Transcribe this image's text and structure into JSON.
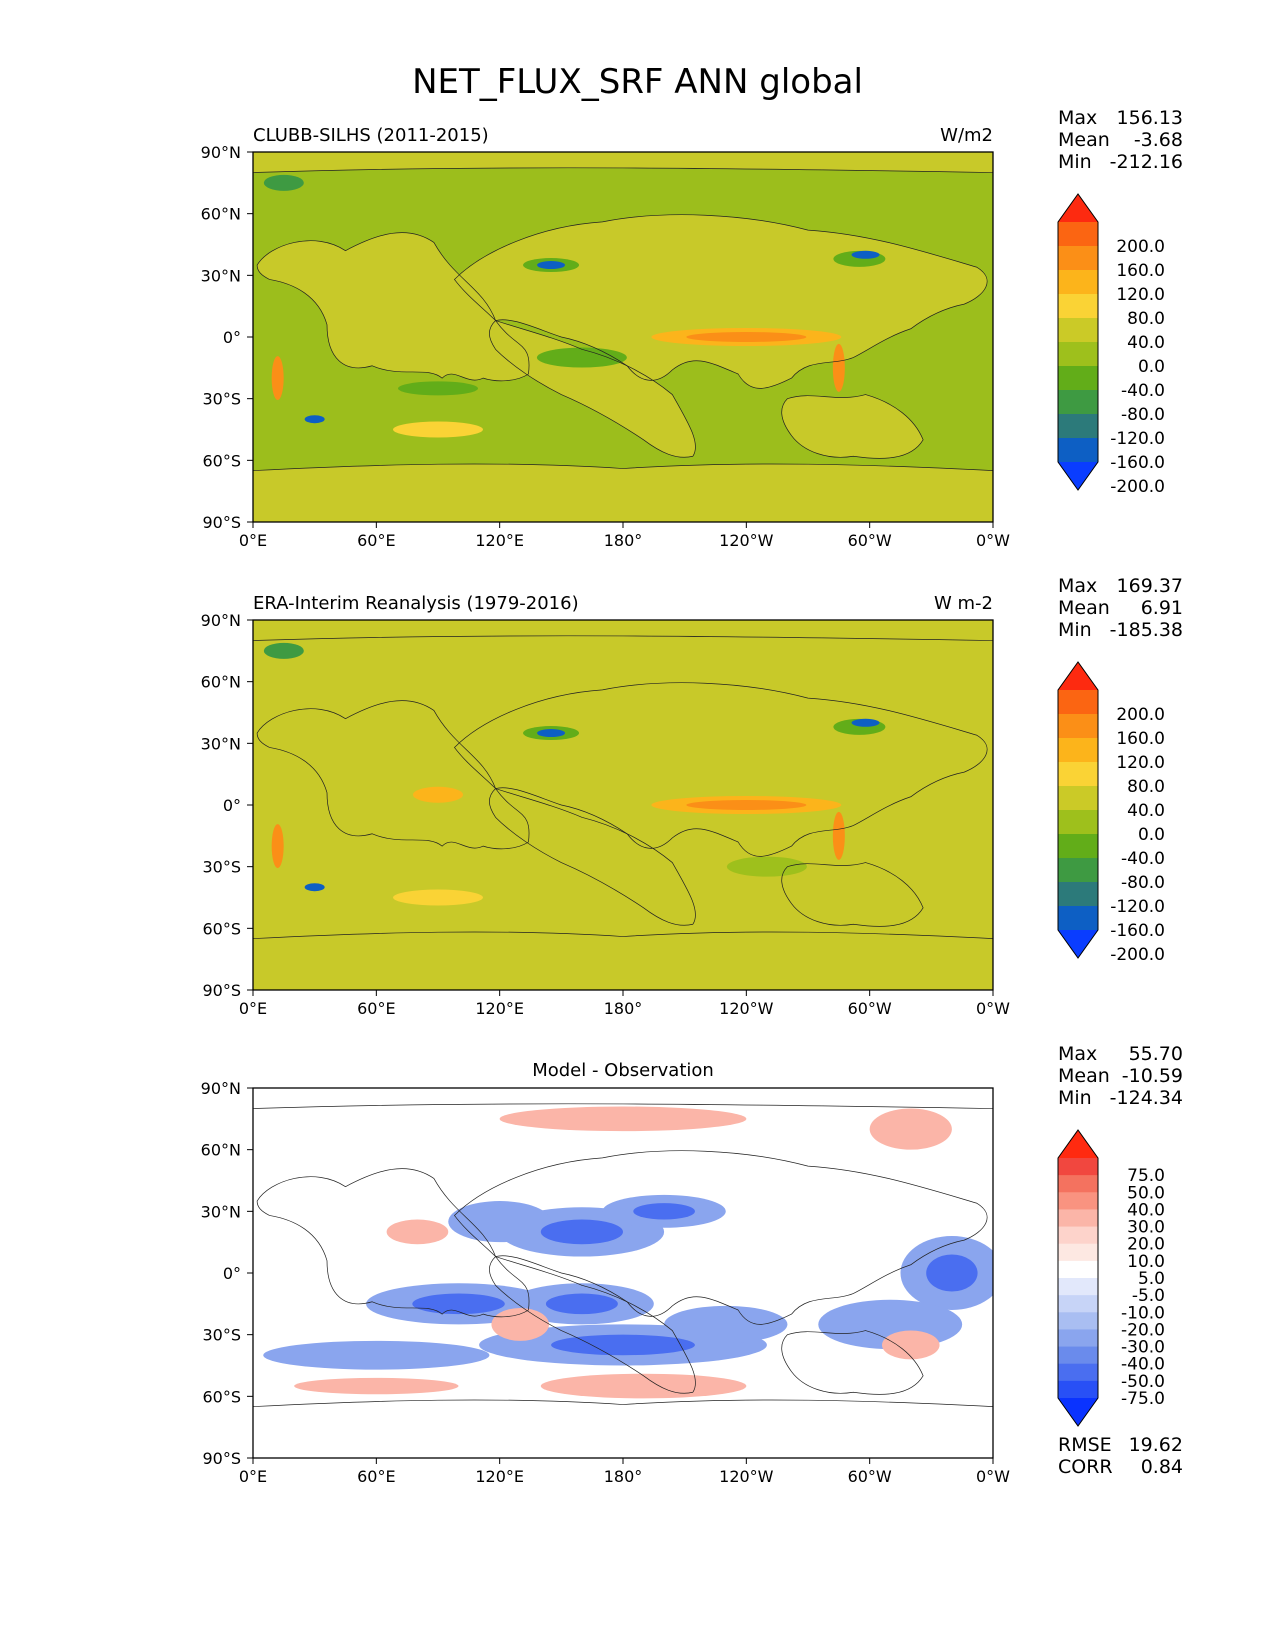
{
  "figure": {
    "title": "NET_FLUX_SRF ANN global"
  },
  "chart_data": [
    {
      "type": "heatmap",
      "title": "CLUBB-SILHS (2011-2015)",
      "units": "W/m2",
      "xlabel": "",
      "ylabel": "",
      "x_ticks": [
        "0°E",
        "60°E",
        "120°E",
        "180°",
        "120°W",
        "60°W",
        "0°W"
      ],
      "y_ticks": [
        "90°N",
        "60°N",
        "30°N",
        "0°",
        "30°S",
        "60°S",
        "90°S"
      ],
      "xlim": [
        0,
        360
      ],
      "ylim": [
        -90,
        90
      ],
      "stats": {
        "max_label": "Max",
        "max": "156.13",
        "mean_label": "Mean",
        "mean": "-3.68",
        "min_label": "Min",
        "min": "-212.16"
      },
      "colorbar": {
        "levels": [
          "200.0",
          "160.0",
          "120.0",
          "80.0",
          "40.0",
          "0.0",
          "-40.0",
          "-80.0",
          "-120.0",
          "-160.0",
          "-200.0"
        ],
        "colors": [
          "#fd2a10",
          "#fb6512",
          "#fb8f17",
          "#fcb41b",
          "#fad335",
          "#cbca27",
          "#9ec01c",
          "#62ad19",
          "#3e9a42",
          "#2c7a7a",
          "#0d5fc4",
          "#0a3dff"
        ]
      }
    },
    {
      "type": "heatmap",
      "title": "ERA-Interim Reanalysis (1979-2016)",
      "units": "W m-2",
      "xlabel": "",
      "ylabel": "",
      "x_ticks": [
        "0°E",
        "60°E",
        "120°E",
        "180°",
        "120°W",
        "60°W",
        "0°W"
      ],
      "y_ticks": [
        "90°N",
        "60°N",
        "30°N",
        "0°",
        "30°S",
        "60°S",
        "90°S"
      ],
      "xlim": [
        0,
        360
      ],
      "ylim": [
        -90,
        90
      ],
      "stats": {
        "max_label": "Max",
        "max": "169.37",
        "mean_label": "Mean",
        "mean": "6.91",
        "min_label": "Min",
        "min": "-185.38"
      },
      "colorbar": {
        "levels": [
          "200.0",
          "160.0",
          "120.0",
          "80.0",
          "40.0",
          "0.0",
          "-40.0",
          "-80.0",
          "-120.0",
          "-160.0",
          "-200.0"
        ],
        "colors": [
          "#fd2a10",
          "#fb6512",
          "#fb8f17",
          "#fcb41b",
          "#fad335",
          "#cbca27",
          "#9ec01c",
          "#62ad19",
          "#3e9a42",
          "#2c7a7a",
          "#0d5fc4",
          "#0a3dff"
        ]
      }
    },
    {
      "type": "heatmap",
      "title": "Model - Observation",
      "units": "",
      "xlabel": "",
      "ylabel": "",
      "x_ticks": [
        "0°E",
        "60°E",
        "120°E",
        "180°",
        "120°W",
        "60°W",
        "0°W"
      ],
      "y_ticks": [
        "90°N",
        "60°N",
        "30°N",
        "0°",
        "30°S",
        "60°S",
        "90°S"
      ],
      "xlim": [
        0,
        360
      ],
      "ylim": [
        -90,
        90
      ],
      "stats": {
        "max_label": "Max",
        "max": "55.70",
        "mean_label": "Mean",
        "mean": "-10.59",
        "min_label": "Min",
        "min": "-124.34"
      },
      "extra_stats": {
        "rmse_label": "RMSE",
        "rmse": "19.62",
        "corr_label": "CORR",
        "corr": "0.84"
      },
      "colorbar": {
        "levels": [
          "75.0",
          "50.0",
          "40.0",
          "30.0",
          "20.0",
          "10.0",
          "5.0",
          "-5.0",
          "-10.0",
          "-20.0",
          "-30.0",
          "-40.0",
          "-50.0",
          "-75.0"
        ],
        "colors": [
          "#ff2a10",
          "#f1473f",
          "#f4725f",
          "#f99380",
          "#fbb5a8",
          "#fdd3cb",
          "#fde8e2",
          "#ffffff",
          "#e2e8fb",
          "#c7d4f7",
          "#a9bef2",
          "#8aa5ee",
          "#6a8bec",
          "#4a6ef0",
          "#2850f6",
          "#0a33ff"
        ]
      }
    }
  ]
}
